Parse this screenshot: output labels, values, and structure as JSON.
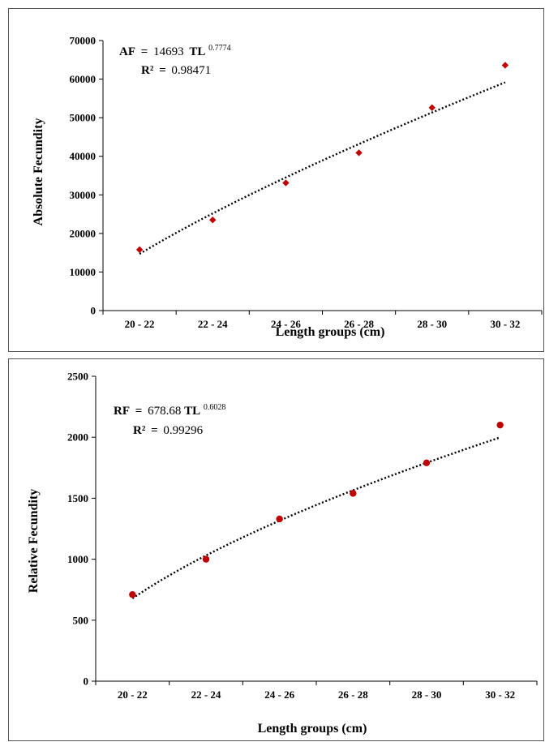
{
  "chart_data": [
    {
      "type": "scatter",
      "ylabel": "Absolute Fecundity",
      "xlabel": "Length groups (cm)",
      "categories": [
        "20 - 22",
        "22 - 24",
        "24 - 26",
        "26 - 28",
        "28 - 30",
        "30 - 32"
      ],
      "yticks": [
        "0",
        "10000",
        "20000",
        "30000",
        "40000",
        "50000",
        "60000",
        "70000"
      ],
      "ylim": [
        0,
        70000
      ],
      "series": [
        {
          "values": [
            15800,
            23500,
            33100,
            40900,
            52600,
            63600
          ],
          "marker": "diamond",
          "color": "#c00000"
        }
      ],
      "trendline": {
        "type": "power",
        "a": 14693,
        "b": 0.7774,
        "style": "dotted",
        "color": "#000000"
      },
      "equation": {
        "lhs": "AF",
        "eq": "=",
        "coef": "14693",
        "var": "TL",
        "exp": "0.7774"
      },
      "r2": {
        "label": "R²",
        "eq": "=",
        "value": "0.98471"
      }
    },
    {
      "type": "scatter",
      "ylabel": "Relative Fecundity",
      "xlabel": "Length groups (cm)",
      "categories": [
        "20 - 22",
        "22 - 24",
        "24 - 26",
        "26 - 28",
        "28 - 30",
        "30 - 32"
      ],
      "yticks": [
        "0",
        "500",
        "1000",
        "1500",
        "2000",
        "2500"
      ],
      "ylim": [
        0,
        2500
      ],
      "series": [
        {
          "values": [
            710,
            1000,
            1330,
            1540,
            1790,
            2100
          ],
          "marker": "circle",
          "color": "#c00000"
        }
      ],
      "trendline": {
        "type": "power",
        "a": 678.68,
        "b": 0.6028,
        "style": "dotted",
        "color": "#000000"
      },
      "equation": {
        "lhs": "RF",
        "eq": "=",
        "coef": "678.68",
        "var": "TL",
        "exp": "0.6028"
      },
      "r2": {
        "label": "R²",
        "eq": "=",
        "value": "0.99296"
      }
    }
  ]
}
